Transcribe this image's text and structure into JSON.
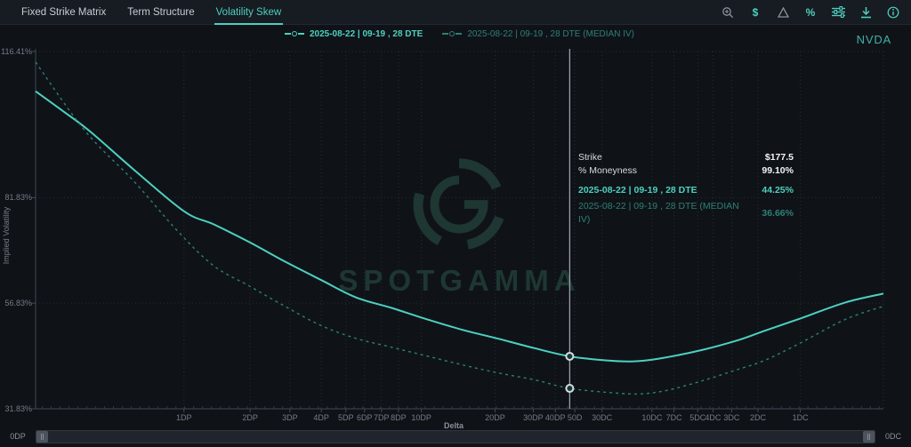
{
  "header": {
    "tabs": [
      {
        "label": "Fixed Strike Matrix",
        "active": false
      },
      {
        "label": "Term Structure",
        "active": false
      },
      {
        "label": "Volatility Skew",
        "active": true
      }
    ],
    "toolbar": {
      "dollar_glyph": "$",
      "percent_glyph": "%"
    }
  },
  "symbol": "NVDA",
  "legend": [
    {
      "label": "2025-08-22 | 09-19 , 28 DTE",
      "muted": false
    },
    {
      "label": "2025-08-22 | 09-19 , 28 DTE (MEDIAN IV)",
      "muted": true
    }
  ],
  "tooltip": {
    "rows": [
      {
        "label": "Strike",
        "value": "$177.5"
      },
      {
        "label": "% Moneyness",
        "value": "99.10%"
      },
      {
        "label": "2025-08-22 | 09-19 , 28 DTE",
        "value": "44.25%"
      },
      {
        "label": "2025-08-22 | 09-19 , 28 DTE (MEDIAN IV)",
        "value": "36.66%"
      }
    ]
  },
  "watermark": {
    "text": "SPOTGAMMA"
  },
  "scrollbar": {
    "left_label": "0DP",
    "right_label": "0DC"
  },
  "colors": {
    "accent": "#4dd0bf",
    "accent_dim": "#2f7f76",
    "grid": "#262c35",
    "crosshair": "#9aa0aa"
  },
  "chart_data": {
    "type": "line",
    "title": "Volatility Skew",
    "xlabel": "Delta",
    "ylabel": "Implied Volatility",
    "ylim": [
      31.83,
      116.41
    ],
    "grid": "dotted",
    "legend_position": "top-center",
    "y_ticks": [
      {
        "label": "116.41%",
        "value": 116.41
      },
      {
        "label": "81.83%",
        "value": 81.83
      },
      {
        "label": "56.83%",
        "value": 56.83
      },
      {
        "label": "31.83%",
        "value": 31.83
      }
    ],
    "x_ticks": [
      {
        "label": "1DP",
        "pos": 0.175
      },
      {
        "label": "2DP",
        "pos": 0.253
      },
      {
        "label": "3DP",
        "pos": 0.3
      },
      {
        "label": "4DP",
        "pos": 0.337
      },
      {
        "label": "5DP",
        "pos": 0.366
      },
      {
        "label": "6DP",
        "pos": 0.388
      },
      {
        "label": "7DP",
        "pos": 0.408
      },
      {
        "label": "8DP",
        "pos": 0.428
      },
      {
        "label": "10DP",
        "pos": 0.455
      },
      {
        "label": "20DP",
        "pos": 0.542
      },
      {
        "label": "30DP",
        "pos": 0.587
      },
      {
        "label": "40DP",
        "pos": 0.613
      },
      {
        "label": "50D",
        "pos": 0.636
      },
      {
        "label": "30DC",
        "pos": 0.668
      },
      {
        "label": "10DC",
        "pos": 0.727
      },
      {
        "label": "7DC",
        "pos": 0.753
      },
      {
        "label": "5DC",
        "pos": 0.781
      },
      {
        "label": "4DC",
        "pos": 0.799
      },
      {
        "label": "3DC",
        "pos": 0.821
      },
      {
        "label": "2DC",
        "pos": 0.852
      },
      {
        "label": "1DC",
        "pos": 0.902
      }
    ],
    "series": [
      {
        "name": "2025-08-22 | 09-19 , 28 DTE",
        "style": "solid",
        "color": "#4dd0bf",
        "points": [
          [
            0.0,
            107.0
          ],
          [
            0.031,
            102.5
          ],
          [
            0.063,
            97.7
          ],
          [
            0.115,
            88.6
          ],
          [
            0.175,
            78.6
          ],
          [
            0.21,
            75.5
          ],
          [
            0.252,
            71.3
          ],
          [
            0.294,
            66.7
          ],
          [
            0.336,
            62.4
          ],
          [
            0.378,
            58.2
          ],
          [
            0.42,
            55.7
          ],
          [
            0.462,
            53.0
          ],
          [
            0.504,
            50.5
          ],
          [
            0.546,
            48.4
          ],
          [
            0.588,
            46.2
          ],
          [
            0.63,
            44.25
          ],
          [
            0.672,
            43.3
          ],
          [
            0.703,
            43.05
          ],
          [
            0.735,
            43.7
          ],
          [
            0.787,
            45.8
          ],
          [
            0.829,
            48.1
          ],
          [
            0.86,
            50.3
          ],
          [
            0.902,
            53.2
          ],
          [
            0.955,
            57.0
          ],
          [
            1.0,
            59.1
          ]
        ]
      },
      {
        "name": "2025-08-22 | 09-19 , 28 DTE (MEDIAN IV)",
        "style": "dashed",
        "color": "#2f7f76",
        "points": [
          [
            0.0,
            113.9
          ],
          [
            0.058,
            97.7
          ],
          [
            0.115,
            85.9
          ],
          [
            0.168,
            73.8
          ],
          [
            0.21,
            65.7
          ],
          [
            0.252,
            60.9
          ],
          [
            0.294,
            56.1
          ],
          [
            0.336,
            51.6
          ],
          [
            0.378,
            48.5
          ],
          [
            0.42,
            46.4
          ],
          [
            0.462,
            44.3
          ],
          [
            0.504,
            42.2
          ],
          [
            0.546,
            40.3
          ],
          [
            0.588,
            38.7
          ],
          [
            0.63,
            36.66
          ],
          [
            0.682,
            35.6
          ],
          [
            0.713,
            35.35
          ],
          [
            0.745,
            36.2
          ],
          [
            0.787,
            38.5
          ],
          [
            0.829,
            41.2
          ],
          [
            0.86,
            43.3
          ],
          [
            0.902,
            47.4
          ],
          [
            0.955,
            53.0
          ],
          [
            1.0,
            56.1
          ]
        ]
      }
    ],
    "crosshair": {
      "pos": 0.63,
      "values": [
        44.25,
        36.66
      ]
    }
  }
}
